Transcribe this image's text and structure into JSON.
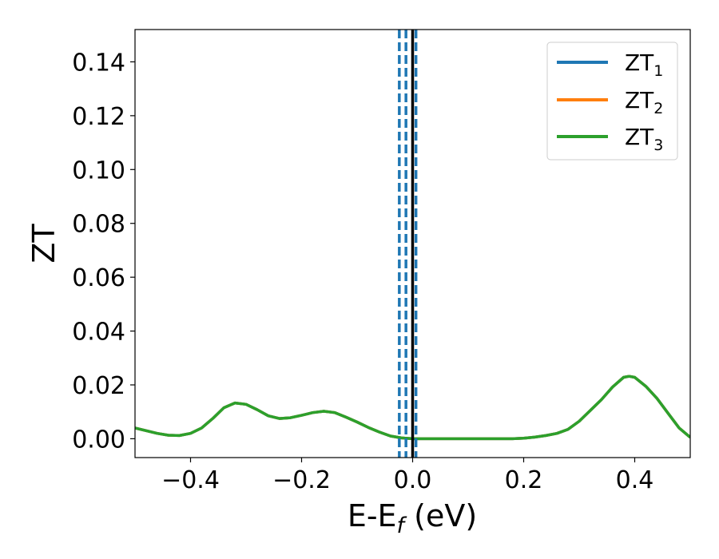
{
  "chart_data": {
    "type": "line",
    "title": "",
    "xlabel": "E-E",
    "xlabel_sub": "f",
    "xlabel_unit": " (eV)",
    "ylabel": "ZT",
    "xlim": [
      -0.5,
      0.5
    ],
    "ylim": [
      -0.007,
      0.152
    ],
    "xticks": [
      -0.4,
      -0.2,
      0.0,
      0.2,
      0.4
    ],
    "xtick_labels": [
      "−0.4",
      "−0.2",
      "0.0",
      "0.2",
      "0.4"
    ],
    "yticks": [
      0.0,
      0.02,
      0.04,
      0.06,
      0.08,
      0.1,
      0.12,
      0.14
    ],
    "ytick_labels": [
      "0.00",
      "0.02",
      "0.04",
      "0.06",
      "0.08",
      "0.10",
      "0.12",
      "0.14"
    ],
    "grid": false,
    "legend_position": "top-right",
    "x": [
      -0.5,
      -0.48,
      -0.46,
      -0.44,
      -0.42,
      -0.4,
      -0.38,
      -0.36,
      -0.34,
      -0.32,
      -0.3,
      -0.28,
      -0.26,
      -0.24,
      -0.22,
      -0.2,
      -0.18,
      -0.16,
      -0.14,
      -0.12,
      -0.1,
      -0.08,
      -0.06,
      -0.04,
      -0.02,
      0.0,
      0.02,
      0.05,
      0.1,
      0.15,
      0.18,
      0.2,
      0.22,
      0.24,
      0.26,
      0.28,
      0.3,
      0.32,
      0.34,
      0.36,
      0.38,
      0.39,
      0.4,
      0.42,
      0.44,
      0.46,
      0.48,
      0.5
    ],
    "series": [
      {
        "name": "ZT",
        "sub": "1",
        "color": "#1f77b4",
        "values": [
          0.004,
          0.003,
          0.002,
          0.0013,
          0.0012,
          0.002,
          0.004,
          0.0075,
          0.0115,
          0.0133,
          0.0128,
          0.0108,
          0.0085,
          0.0075,
          0.0078,
          0.0087,
          0.0097,
          0.0102,
          0.0097,
          0.008,
          0.0062,
          0.0042,
          0.0025,
          0.001,
          0.0003,
          0.0,
          0.0,
          0.0,
          0.0,
          0.0,
          0.0,
          0.0002,
          0.0006,
          0.0012,
          0.002,
          0.0035,
          0.0065,
          0.0105,
          0.0145,
          0.0192,
          0.0228,
          0.0232,
          0.0228,
          0.0195,
          0.015,
          0.0095,
          0.004,
          0.0005
        ]
      },
      {
        "name": "ZT",
        "sub": "2",
        "color": "#ff7f0e",
        "values": [
          0.004,
          0.003,
          0.002,
          0.0013,
          0.0012,
          0.002,
          0.004,
          0.0075,
          0.0115,
          0.0133,
          0.0128,
          0.0108,
          0.0085,
          0.0075,
          0.0078,
          0.0087,
          0.0097,
          0.0102,
          0.0097,
          0.008,
          0.0062,
          0.0042,
          0.0025,
          0.001,
          0.0003,
          0.0,
          0.0,
          0.0,
          0.0,
          0.0,
          0.0,
          0.0002,
          0.0006,
          0.0012,
          0.002,
          0.0035,
          0.0065,
          0.0105,
          0.0145,
          0.0192,
          0.0228,
          0.0232,
          0.0228,
          0.0195,
          0.015,
          0.0095,
          0.004,
          0.0005
        ]
      },
      {
        "name": "ZT",
        "sub": "3",
        "color": "#2ca02c",
        "values": [
          0.004,
          0.003,
          0.002,
          0.0013,
          0.0012,
          0.002,
          0.004,
          0.0075,
          0.0115,
          0.0133,
          0.0128,
          0.0108,
          0.0085,
          0.0075,
          0.0078,
          0.0087,
          0.0097,
          0.0102,
          0.0097,
          0.008,
          0.0062,
          0.0042,
          0.0025,
          0.001,
          0.0003,
          0.0,
          0.0,
          0.0,
          0.0,
          0.0,
          0.0,
          0.0002,
          0.0006,
          0.0012,
          0.002,
          0.0035,
          0.0065,
          0.0105,
          0.0145,
          0.0192,
          0.0228,
          0.0232,
          0.0228,
          0.0195,
          0.015,
          0.0095,
          0.004,
          0.0005
        ]
      }
    ],
    "vlines": [
      {
        "x": -0.024,
        "style": "dashed",
        "color": "#1f77b4"
      },
      {
        "x": -0.012,
        "style": "dashed",
        "color": "#1f77b4"
      },
      {
        "x": 0.0,
        "style": "solid",
        "color": "#000000"
      },
      {
        "x": 0.006,
        "style": "dashed",
        "color": "#1f77b4"
      }
    ]
  }
}
